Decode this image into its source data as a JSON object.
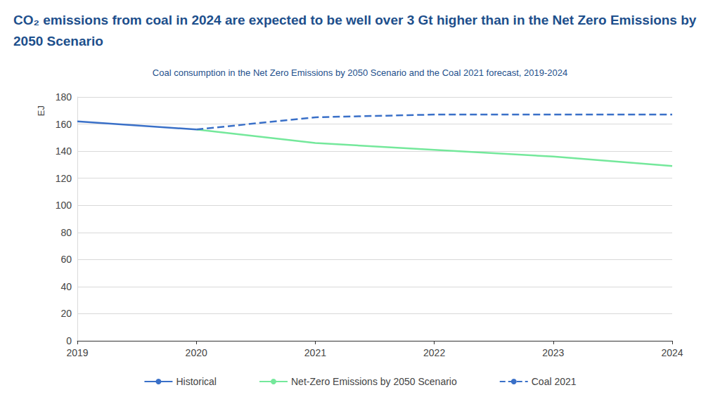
{
  "chart_data": {
    "type": "line",
    "title": "CO₂ emissions from coal in 2024 are expected to be well over 3 Gt higher than in the Net Zero Emissions by 2050 Scenario",
    "subtitle": "Coal consumption in the Net Zero Emissions by 2050 Scenario and the Coal 2021 forecast, 2019-2024",
    "y_label": "EJ",
    "categories": [
      "2019",
      "2020",
      "2021",
      "2022",
      "2023",
      "2024"
    ],
    "series": [
      {
        "name": "Historical",
        "color": "#3a70c8",
        "line_style": "solid",
        "values": [
          162,
          156,
          null,
          null,
          null,
          null
        ]
      },
      {
        "name": "Net-Zero Emissions by 2050 Scenario",
        "color": "#74e89b",
        "line_style": "solid",
        "values": [
          null,
          156,
          146,
          141,
          136,
          129
        ]
      },
      {
        "name": "Coal 2021",
        "color": "#3a70c8",
        "line_style": "dashed",
        "values": [
          null,
          156,
          165,
          167,
          167,
          167
        ]
      }
    ],
    "ylim": [
      0,
      180
    ],
    "yticks": [
      0,
      20,
      40,
      60,
      80,
      100,
      120,
      140,
      160,
      180
    ],
    "grid": true,
    "legend": "bottom"
  }
}
